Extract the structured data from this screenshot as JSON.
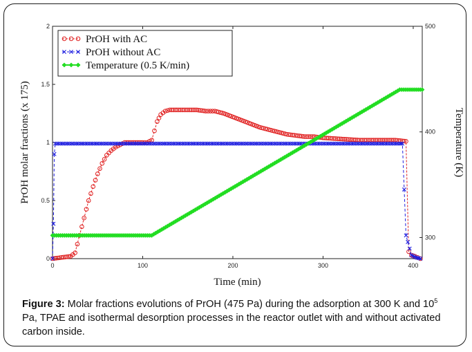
{
  "chart_data": {
    "type": "line",
    "xlabel": "Time (min)",
    "ylabel_left": "PrOH molar fractions (x 175)",
    "ylabel_right": "Temperature (K)",
    "xlim": [
      0,
      410
    ],
    "ylim_left": [
      0,
      2
    ],
    "ylim_right": [
      280,
      500
    ],
    "x_ticks": [
      "0",
      "100",
      "200",
      "300",
      "400"
    ],
    "y_left_ticks": [
      "0",
      "0.5",
      "1",
      "1.5",
      "2"
    ],
    "y_right_ticks": [
      "300",
      "400",
      "500"
    ],
    "grid": false,
    "legend_position": "top-left",
    "series": [
      {
        "name": "PrOH with AC",
        "axis": "left",
        "color": "#e02020",
        "marker": "circle",
        "x": [
          0,
          10,
          20,
          25,
          30,
          35,
          40,
          45,
          50,
          55,
          60,
          65,
          70,
          75,
          80,
          90,
          100,
          105,
          110,
          113,
          116,
          120,
          125,
          130,
          140,
          150,
          160,
          170,
          175,
          180,
          190,
          200,
          210,
          220,
          230,
          240,
          250,
          260,
          270,
          280,
          290,
          300,
          320,
          340,
          360,
          380,
          392,
          395,
          398,
          402,
          405,
          408
        ],
        "y": [
          0,
          0.01,
          0.02,
          0.05,
          0.2,
          0.35,
          0.5,
          0.62,
          0.73,
          0.82,
          0.89,
          0.93,
          0.96,
          0.98,
          1.0,
          1.0,
          1.0,
          1.0,
          1.02,
          1.1,
          1.18,
          1.24,
          1.27,
          1.28,
          1.28,
          1.28,
          1.28,
          1.27,
          1.27,
          1.27,
          1.25,
          1.22,
          1.19,
          1.16,
          1.13,
          1.11,
          1.09,
          1.07,
          1.06,
          1.05,
          1.05,
          1.04,
          1.03,
          1.02,
          1.02,
          1.02,
          1.01,
          0.06,
          0.03,
          0.02,
          0.01,
          0.0
        ]
      },
      {
        "name": "PrOH without AC",
        "axis": "left",
        "color": "#1e1ee0",
        "marker": "x",
        "x": [
          0,
          1,
          2,
          3,
          100,
          200,
          300,
          385,
          388,
          392,
          398,
          403,
          408
        ],
        "y": [
          0,
          0.3,
          0.9,
          0.99,
          0.99,
          0.99,
          0.99,
          0.99,
          0.99,
          0.2,
          0.03,
          0.01,
          0.0
        ]
      },
      {
        "name": "Temperature (0.5 K/min)",
        "axis": "right",
        "color": "#22dd22",
        "marker": "diamond",
        "x": [
          0,
          110,
          385,
          410
        ],
        "y": [
          302,
          302,
          440,
          440
        ]
      }
    ]
  },
  "caption": {
    "label": "Figure 3:",
    "text_a": " Molar fractions evolutions of PrOH (475 Pa) during the adsorption at 300 K and 10",
    "sup": "5",
    "text_b": " Pa, TPAE and isothermal desorption processes in the reactor outlet with and without activated carbon inside."
  }
}
